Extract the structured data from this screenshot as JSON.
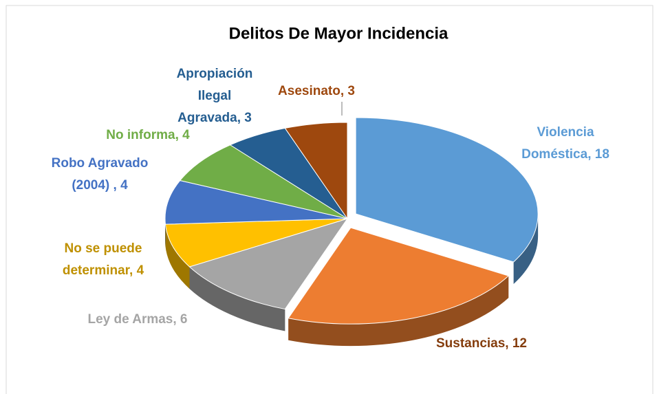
{
  "chart_data": {
    "type": "pie3d",
    "title": "Delitos De Mayor Incidencia",
    "labels": [
      [
        "Violencia",
        "Doméstica, 18"
      ],
      [
        "Sustancias, 12"
      ],
      [
        "Ley de Armas, 6"
      ],
      [
        "No se puede",
        "determinar, 4"
      ],
      [
        "Robo Agravado",
        "(2004) , 4"
      ],
      [
        "No informa, 4"
      ],
      [
        "Apropiación",
        "Ilegal",
        "Agravada, 3"
      ],
      [
        "Asesinato, 3"
      ]
    ],
    "values": [
      18,
      12,
      6,
      4,
      4,
      4,
      3,
      3
    ],
    "colors": [
      "#5b9bd5",
      "#ed7d31",
      "#a5a5a5",
      "#ffc000",
      "#4472c4",
      "#70ad47",
      "#255e91",
      "#9e480e"
    ],
    "label_colors": [
      "#5b9bd5",
      "#843c0c",
      "#a5a5a5",
      "#bf9000",
      "#4472c4",
      "#70ad47",
      "#255e91",
      "#9e480e"
    ]
  }
}
